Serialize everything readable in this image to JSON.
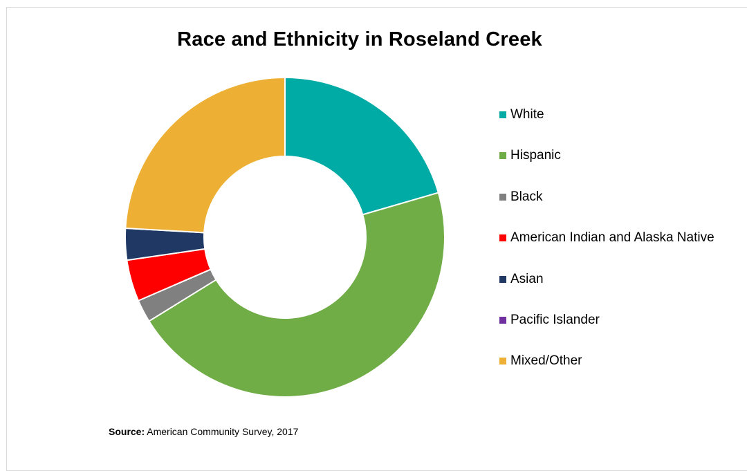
{
  "chart_data": {
    "type": "pie",
    "donut": true,
    "title": "Race and Ethnicity in Roseland Creek",
    "categories": [
      "White",
      "Hispanic",
      "Black",
      "American Indian and Alaska Native",
      "Asian",
      "Pacific Islander",
      "Mixed/Other"
    ],
    "values": [
      20.5,
      45.7,
      2.3,
      4.2,
      3.2,
      0.0,
      24.1
    ],
    "unit": "%",
    "colors": [
      "#00aba5",
      "#70ad47",
      "#808080",
      "#ff0000",
      "#1f3864",
      "#7030a0",
      "#edb034"
    ],
    "legend_position": "right",
    "start_angle_deg": 0,
    "direction": "clockwise"
  },
  "source": {
    "label": "Source:",
    "text": " American Community Survey, 2017"
  }
}
